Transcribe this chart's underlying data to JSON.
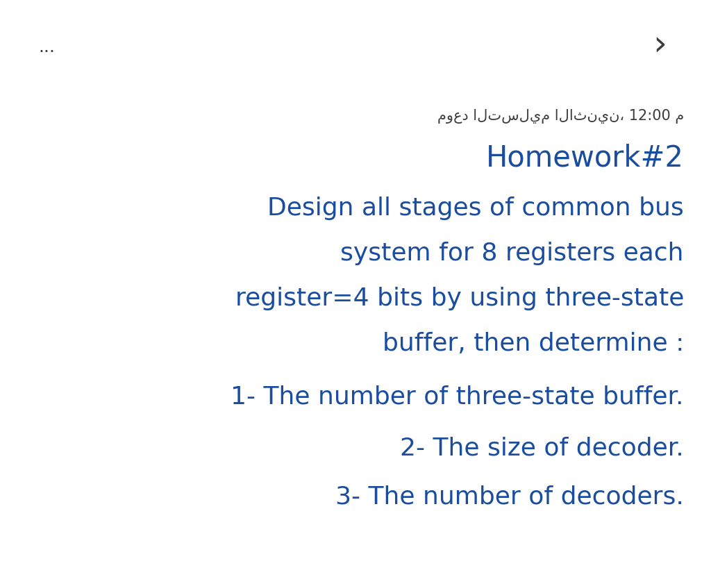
{
  "background_color": "#ffffff",
  "blue": "#1a4d9e",
  "dark": "#3d3d3d",
  "arabic_line": "م 12:00 ،الاثنين التسليم موعد",
  "line1": "Homework#2",
  "line2": "Design all stages of common bus",
  "line3": "system for 8 registers each",
  "line4": "register=4 bits by using three-state",
  "line5": "buffer, then determine :",
  "line6": "1- The number of three-state buffer.",
  "line7": "2- The size of decoder.",
  "line8": "3- The number of decoders.",
  "dots_text": "...",
  "arrow_text": "›",
  "arabic_fontsize": 15,
  "title_fontsize": 30,
  "body_fontsize": 26,
  "dots_fontsize": 18,
  "arrow_fontsize": 36
}
